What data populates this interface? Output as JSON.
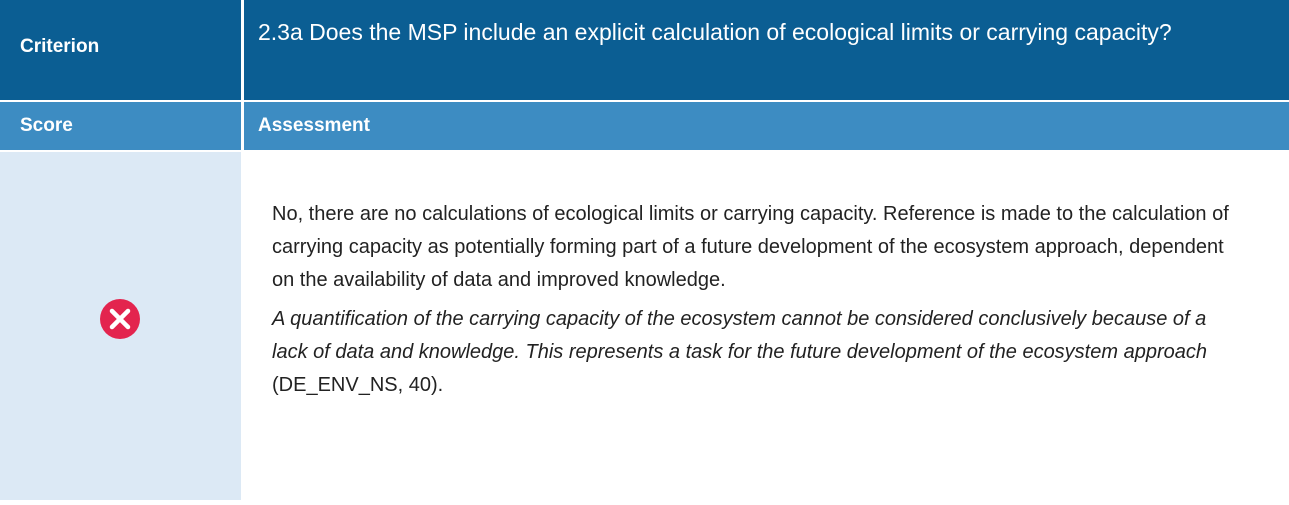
{
  "table": {
    "header": {
      "label": "Criterion",
      "text": "2.3a Does the MSP include an explicit calculation of ecological limits or carrying capacity?"
    },
    "subheader": {
      "score": "Score",
      "assessment": "Assessment"
    },
    "body": {
      "paragraph": "No, there are no calculations of ecological limits or carrying capacity. Reference is made to the calculation of carrying capacity as potentially forming part of a future development of the ecosystem approach, dependent on the availability of data and improved knowledge.",
      "quote": "A quantification of the carrying capacity of the ecosystem cannot be considered conclusively because of a lack of data and knowledge. This represents a task for the future development of the ecosystem approach",
      "citation": "(DE_ENV_NS, 40)."
    }
  }
}
